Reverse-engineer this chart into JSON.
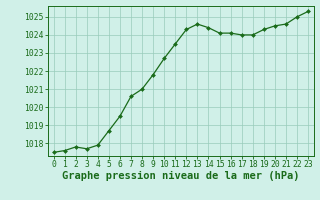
{
  "x": [
    0,
    1,
    2,
    3,
    4,
    5,
    6,
    7,
    8,
    9,
    10,
    11,
    12,
    13,
    14,
    15,
    16,
    17,
    18,
    19,
    20,
    21,
    22,
    23
  ],
  "y": [
    1017.5,
    1017.6,
    1017.8,
    1017.7,
    1017.9,
    1018.7,
    1019.5,
    1020.6,
    1021.0,
    1021.8,
    1022.7,
    1023.5,
    1024.3,
    1024.6,
    1024.4,
    1024.1,
    1024.1,
    1024.0,
    1024.0,
    1024.3,
    1024.5,
    1024.6,
    1025.0,
    1025.3
  ],
  "line_color": "#1a6b1a",
  "marker_color": "#1a6b1a",
  "bg_color": "#d0f0e8",
  "grid_color": "#99ccbb",
  "xlabel": "Graphe pression niveau de la mer (hPa)",
  "ylim": [
    1017.3,
    1025.6
  ],
  "yticks": [
    1018,
    1019,
    1020,
    1021,
    1022,
    1023,
    1024,
    1025
  ],
  "xticks": [
    0,
    1,
    2,
    3,
    4,
    5,
    6,
    7,
    8,
    9,
    10,
    11,
    12,
    13,
    14,
    15,
    16,
    17,
    18,
    19,
    20,
    21,
    22,
    23
  ],
  "title_fontsize": 7.5,
  "tick_fontsize": 5.8,
  "linewidth": 0.9,
  "markersize": 2.0
}
